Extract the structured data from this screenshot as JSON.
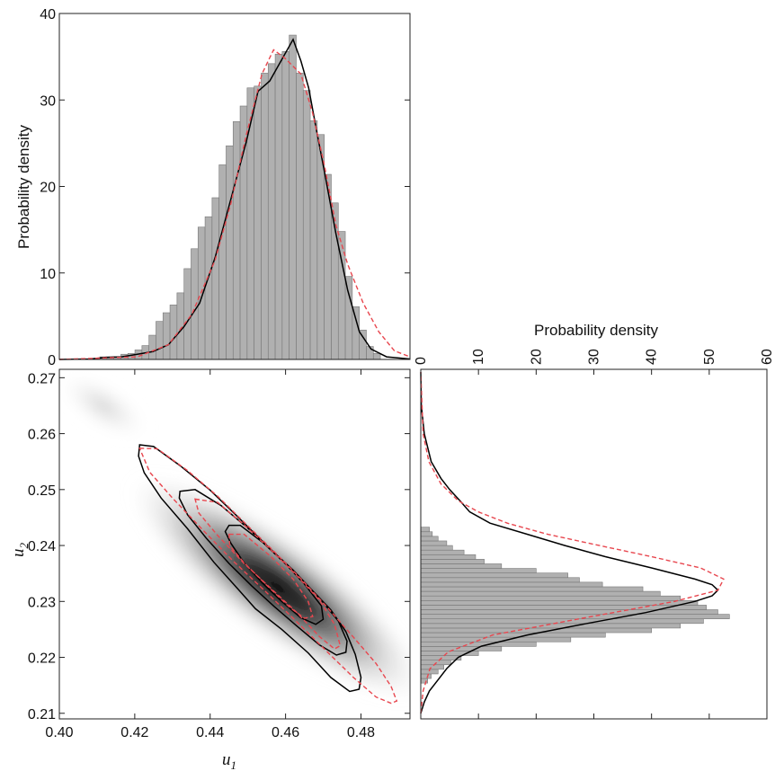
{
  "chart_data": [
    {
      "id": "u1-marginal",
      "type": "histogram",
      "title": "",
      "xlabel": "",
      "ylabel": "Probability density",
      "xlim": [
        0.4,
        0.49
      ],
      "ylim": [
        0,
        40
      ],
      "yticks": [
        "0",
        "10",
        "20",
        "30",
        "40"
      ],
      "bin_width": 0.0018,
      "bins_start": 0.4104,
      "values": [
        0.3,
        0.2,
        0.3,
        0.6,
        0.7,
        1.1,
        1.6,
        2.8,
        4.4,
        5.4,
        6.3,
        7.7,
        10.5,
        12.8,
        15.3,
        16.5,
        18.7,
        22.5,
        24.7,
        27.5,
        29.3,
        31.4,
        31.6,
        33.1,
        34.2,
        35.3,
        35.6,
        37.5,
        33.1,
        31.1,
        27.6,
        26.0,
        21.4,
        18.1,
        14.8,
        9.6,
        6.1,
        3.4,
        1.5,
        0.7
      ],
      "series": [
        {
          "style": "solid-black",
          "points": [
            [
              0.4,
              0.0
            ],
            [
              0.408,
              0.05
            ],
            [
              0.412,
              0.25
            ],
            [
              0.416,
              0.3
            ],
            [
              0.42,
              0.6
            ],
            [
              0.424,
              0.9
            ],
            [
              0.428,
              1.7
            ],
            [
              0.432,
              3.8
            ],
            [
              0.436,
              6.5
            ],
            [
              0.44,
              11.8
            ],
            [
              0.444,
              18.5
            ],
            [
              0.448,
              25.2
            ],
            [
              0.451,
              31.0
            ],
            [
              0.454,
              32.2
            ],
            [
              0.457,
              34.6
            ],
            [
              0.46,
              37.0
            ],
            [
              0.462,
              34.5
            ],
            [
              0.464,
              31.4
            ],
            [
              0.466,
              26.5
            ],
            [
              0.468,
              21.8
            ],
            [
              0.471,
              14.5
            ],
            [
              0.474,
              8.0
            ],
            [
              0.477,
              3.2
            ],
            [
              0.48,
              1.2
            ],
            [
              0.484,
              0.3
            ],
            [
              0.49,
              0.05
            ]
          ]
        },
        {
          "style": "dashed-red",
          "points": [
            [
              0.4,
              0.0
            ],
            [
              0.42,
              0.3
            ],
            [
              0.428,
              1.7
            ],
            [
              0.434,
              5.2
            ],
            [
              0.44,
              11.5
            ],
            [
              0.444,
              18.0
            ],
            [
              0.448,
              26.0
            ],
            [
              0.452,
              33.0
            ],
            [
              0.455,
              35.8
            ],
            [
              0.458,
              34.8
            ],
            [
              0.462,
              33.0
            ],
            [
              0.465,
              28.5
            ],
            [
              0.468,
              22.5
            ],
            [
              0.471,
              15.5
            ],
            [
              0.474,
              11.0
            ],
            [
              0.478,
              6.5
            ],
            [
              0.482,
              3.2
            ],
            [
              0.486,
              1.0
            ],
            [
              0.49,
              0.3
            ]
          ]
        }
      ]
    },
    {
      "id": "u2-marginal",
      "type": "histogram",
      "orientation": "horizontal",
      "title": "",
      "xlabel": "Probability density",
      "ylabel": "",
      "xlim": [
        0,
        60
      ],
      "xticks": [
        "0",
        "10",
        "20",
        "30",
        "40",
        "50",
        "60"
      ],
      "ylim": [
        0.209,
        0.2715
      ],
      "bin_width": 0.00082,
      "bins_start": 0.2154,
      "values": [
        1.2,
        1.8,
        3.0,
        4.0,
        5.2,
        7.0,
        10.0,
        14.0,
        20.0,
        26.0,
        32.0,
        40.0,
        45.0,
        49.0,
        53.5,
        51.5,
        49.5,
        48.0,
        45.0,
        41.5,
        38.5,
        31.5,
        27.5,
        25.5,
        20.0,
        14.0,
        11.0,
        9.5,
        7.5,
        5.5,
        4.5,
        3.0,
        2.0,
        1.5
      ],
      "series": [
        {
          "style": "solid-black",
          "points": [
            [
              0.21,
              0.0
            ],
            [
              0.212,
              0.6
            ],
            [
              0.214,
              1.5
            ],
            [
              0.216,
              3.0
            ],
            [
              0.218,
              4.5
            ],
            [
              0.22,
              6.5
            ],
            [
              0.222,
              10.5
            ],
            [
              0.224,
              18.5
            ],
            [
              0.226,
              28.5
            ],
            [
              0.228,
              39.0
            ],
            [
              0.23,
              47.5
            ],
            [
              0.231,
              50.5
            ],
            [
              0.232,
              51.5
            ],
            [
              0.233,
              50.5
            ],
            [
              0.234,
              47.5
            ],
            [
              0.236,
              40.0
            ],
            [
              0.238,
              32.0
            ],
            [
              0.24,
              25.0
            ],
            [
              0.242,
              18.5
            ],
            [
              0.244,
              12.0
            ],
            [
              0.246,
              8.5
            ],
            [
              0.248,
              6.8
            ],
            [
              0.25,
              5.0
            ],
            [
              0.252,
              3.5
            ],
            [
              0.255,
              1.8
            ],
            [
              0.26,
              0.6
            ],
            [
              0.265,
              0.1
            ],
            [
              0.271,
              0.0
            ]
          ]
        },
        {
          "style": "dashed-red",
          "points": [
            [
              0.21,
              0.0
            ],
            [
              0.214,
              0.4
            ],
            [
              0.218,
              1.6
            ],
            [
              0.221,
              4.8
            ],
            [
              0.224,
              12.5
            ],
            [
              0.227,
              28.0
            ],
            [
              0.23,
              44.0
            ],
            [
              0.232,
              51.5
            ],
            [
              0.234,
              52.5
            ],
            [
              0.236,
              48.5
            ],
            [
              0.238,
              40.0
            ],
            [
              0.24,
              31.0
            ],
            [
              0.242,
              22.0
            ],
            [
              0.244,
              15.0
            ],
            [
              0.246,
              10.0
            ],
            [
              0.248,
              6.5
            ],
            [
              0.251,
              3.5
            ],
            [
              0.255,
              1.4
            ],
            [
              0.26,
              0.4
            ],
            [
              0.271,
              0.0
            ]
          ]
        }
      ]
    },
    {
      "id": "joint",
      "type": "contour",
      "title": "",
      "xlabel": "u",
      "xlabel_sub": "1",
      "ylabel": "u",
      "ylabel_sub": "2",
      "xlim": [
        0.4,
        0.493
      ],
      "ylim": [
        0.209,
        0.2715
      ],
      "xticks": [
        "0.40",
        "0.42",
        "0.44",
        "0.46",
        "0.48"
      ],
      "yticks": [
        "0.21",
        "0.22",
        "0.23",
        "0.24",
        "0.25",
        "0.26",
        "0.27"
      ],
      "density_center": [
        0.458,
        0.2325
      ],
      "contours": [
        {
          "style": "solid-black",
          "points": [
            [
              0.4213,
              0.258
            ],
            [
              0.425,
              0.2577
            ],
            [
              0.432,
              0.2543
            ],
            [
              0.44,
              0.2499
            ],
            [
              0.446,
              0.246
            ],
            [
              0.452,
              0.242
            ],
            [
              0.457,
              0.2387
            ],
            [
              0.462,
              0.2356
            ],
            [
              0.467,
              0.232
            ],
            [
              0.472,
              0.2285
            ],
            [
              0.476,
              0.2246
            ],
            [
              0.4785,
              0.2205
            ],
            [
              0.48,
              0.2164
            ],
            [
              0.4795,
              0.2143
            ],
            [
              0.477,
              0.2139
            ],
            [
              0.472,
              0.2164
            ],
            [
              0.466,
              0.2208
            ],
            [
              0.459,
              0.225
            ],
            [
              0.452,
              0.2287
            ],
            [
              0.447,
              0.2325
            ],
            [
              0.441,
              0.237
            ],
            [
              0.434,
              0.243
            ],
            [
              0.427,
              0.2485
            ],
            [
              0.4225,
              0.253
            ],
            [
              0.421,
              0.256
            ],
            [
              0.4213,
              0.258
            ]
          ]
        },
        {
          "style": "solid-black",
          "points": [
            [
              0.432,
              0.2497
            ],
            [
              0.436,
              0.25
            ],
            [
              0.443,
              0.2471
            ],
            [
              0.45,
              0.2431
            ],
            [
              0.457,
              0.2387
            ],
            [
              0.463,
              0.2348
            ],
            [
              0.469,
              0.2306
            ],
            [
              0.474,
              0.2265
            ],
            [
              0.4763,
              0.2229
            ],
            [
              0.476,
              0.2209
            ],
            [
              0.4735,
              0.2204
            ],
            [
              0.469,
              0.2222
            ],
            [
              0.463,
              0.2256
            ],
            [
              0.457,
              0.2291
            ],
            [
              0.451,
              0.2328
            ],
            [
              0.445,
              0.2368
            ],
            [
              0.439,
              0.2413
            ],
            [
              0.434,
              0.2455
            ],
            [
              0.4318,
              0.2485
            ],
            [
              0.432,
              0.2497
            ]
          ]
        },
        {
          "style": "solid-black",
          "points": [
            [
              0.445,
              0.2436
            ],
            [
              0.448,
              0.2436
            ],
            [
              0.454,
              0.2405
            ],
            [
              0.46,
              0.2367
            ],
            [
              0.465,
              0.2331
            ],
            [
              0.4695,
              0.2292
            ],
            [
              0.47,
              0.2268
            ],
            [
              0.468,
              0.2259
            ],
            [
              0.464,
              0.2271
            ],
            [
              0.459,
              0.23
            ],
            [
              0.454,
              0.2332
            ],
            [
              0.449,
              0.2369
            ],
            [
              0.4455,
              0.2404
            ],
            [
              0.444,
              0.2425
            ],
            [
              0.445,
              0.2436
            ]
          ]
        },
        {
          "style": "dashed-red",
          "points": [
            [
              0.4213,
              0.2574
            ],
            [
              0.426,
              0.2573
            ],
            [
              0.434,
              0.2534
            ],
            [
              0.442,
              0.2488
            ],
            [
              0.45,
              0.2435
            ],
            [
              0.457,
              0.2389
            ],
            [
              0.464,
              0.2341
            ],
            [
              0.471,
              0.229
            ],
            [
              0.478,
              0.2236
            ],
            [
              0.484,
              0.2189
            ],
            [
              0.488,
              0.2148
            ],
            [
              0.4895,
              0.2122
            ],
            [
              0.488,
              0.2118
            ],
            [
              0.484,
              0.2129
            ],
            [
              0.478,
              0.2164
            ],
            [
              0.47,
              0.2217
            ],
            [
              0.462,
              0.227
            ],
            [
              0.454,
              0.2322
            ],
            [
              0.446,
              0.2373
            ],
            [
              0.438,
              0.2428
            ],
            [
              0.43,
              0.2485
            ],
            [
              0.424,
              0.2531
            ],
            [
              0.4213,
              0.2574
            ]
          ]
        },
        {
          "style": "dashed-red",
          "points": [
            [
              0.436,
              0.2483
            ],
            [
              0.442,
              0.2477
            ],
            [
              0.449,
              0.2437
            ],
            [
              0.456,
              0.2393
            ],
            [
              0.463,
              0.2346
            ],
            [
              0.469,
              0.2302
            ],
            [
              0.473,
              0.2259
            ],
            [
              0.4745,
              0.2221
            ],
            [
              0.473,
              0.2215
            ],
            [
              0.469,
              0.2237
            ],
            [
              0.463,
              0.228
            ],
            [
              0.456,
              0.2324
            ],
            [
              0.449,
              0.2368
            ],
            [
              0.442,
              0.2418
            ],
            [
              0.437,
              0.2458
            ],
            [
              0.436,
              0.2483
            ]
          ]
        },
        {
          "style": "dashed-red",
          "points": [
            [
              0.445,
              0.242
            ],
            [
              0.449,
              0.242
            ],
            [
              0.456,
              0.2381
            ],
            [
              0.462,
              0.234
            ],
            [
              0.466,
              0.23
            ],
            [
              0.4672,
              0.2273
            ],
            [
              0.465,
              0.227
            ],
            [
              0.461,
              0.229
            ],
            [
              0.455,
              0.2329
            ],
            [
              0.449,
              0.2369
            ],
            [
              0.4452,
              0.24
            ],
            [
              0.445,
              0.242
            ]
          ]
        }
      ]
    }
  ],
  "colors": {
    "histogram_fill": "#b0b0b0",
    "histogram_stroke": "#777777",
    "fit_solid": "#000000",
    "fit_dashed": "#e8474f",
    "axis": "#222222"
  }
}
